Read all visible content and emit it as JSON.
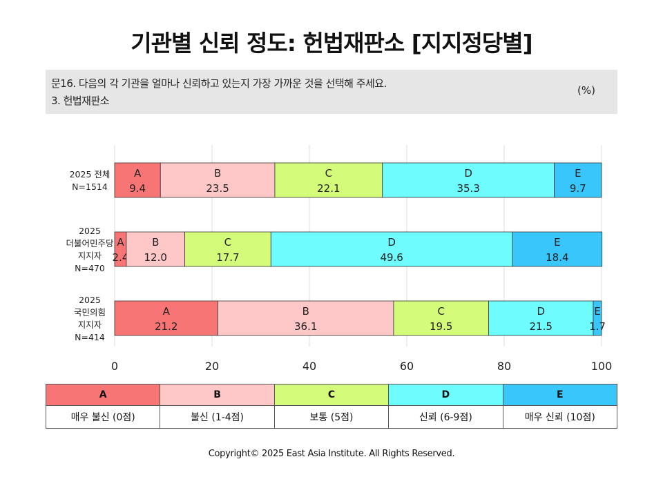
{
  "title": "기관별 신뢰 정도: 헌법재판소 [지지정당별]",
  "question": {
    "line1": "문16. 다음의 각 기관을 얼마나 신뢰하고 있는지 가장 가까운 것을 선택해 주세요.",
    "line2": "3. 헌법재판소",
    "unit": "(%)"
  },
  "chart_data": {
    "type": "bar",
    "orientation": "horizontal",
    "stacked": true,
    "categories": [
      [
        "2025 전체",
        "N=1514"
      ],
      [
        "2025",
        "더불어민주당",
        "지지자",
        "N=470"
      ],
      [
        "2025",
        "국민의힘",
        "지지자",
        "N=414"
      ]
    ],
    "series": [
      {
        "name": "A",
        "color": "#f87575",
        "values": [
          9.4,
          2.4,
          21.2
        ]
      },
      {
        "name": "B",
        "color": "#ffc8c8",
        "values": [
          23.5,
          12.0,
          36.1
        ]
      },
      {
        "name": "C",
        "color": "#d4fb79",
        "values": [
          22.1,
          17.7,
          19.5
        ]
      },
      {
        "name": "D",
        "color": "#6ffcff",
        "values": [
          35.3,
          49.6,
          21.5
        ]
      },
      {
        "name": "E",
        "color": "#38c6fb",
        "values": [
          9.7,
          18.4,
          1.7
        ]
      }
    ],
    "x_ticks": [
      "0",
      "20",
      "40",
      "60",
      "80",
      "100"
    ],
    "xlim": [
      0,
      100
    ],
    "grid": true
  },
  "legend": {
    "keys": [
      {
        "key": "A",
        "desc": "매우 불신 (0점)",
        "color": "#f87575"
      },
      {
        "key": "B",
        "desc": "불신 (1-4점)",
        "color": "#ffc8c8"
      },
      {
        "key": "C",
        "desc": "보통 (5점)",
        "color": "#d4fb79"
      },
      {
        "key": "D",
        "desc": "신뢰 (6-9점)",
        "color": "#6ffcff"
      },
      {
        "key": "E",
        "desc": "매우 신뢰 (10점)",
        "color": "#38c6fb"
      }
    ]
  },
  "copyright": "Copyright© 2025 East Asia Institute. All Rights Reserved."
}
